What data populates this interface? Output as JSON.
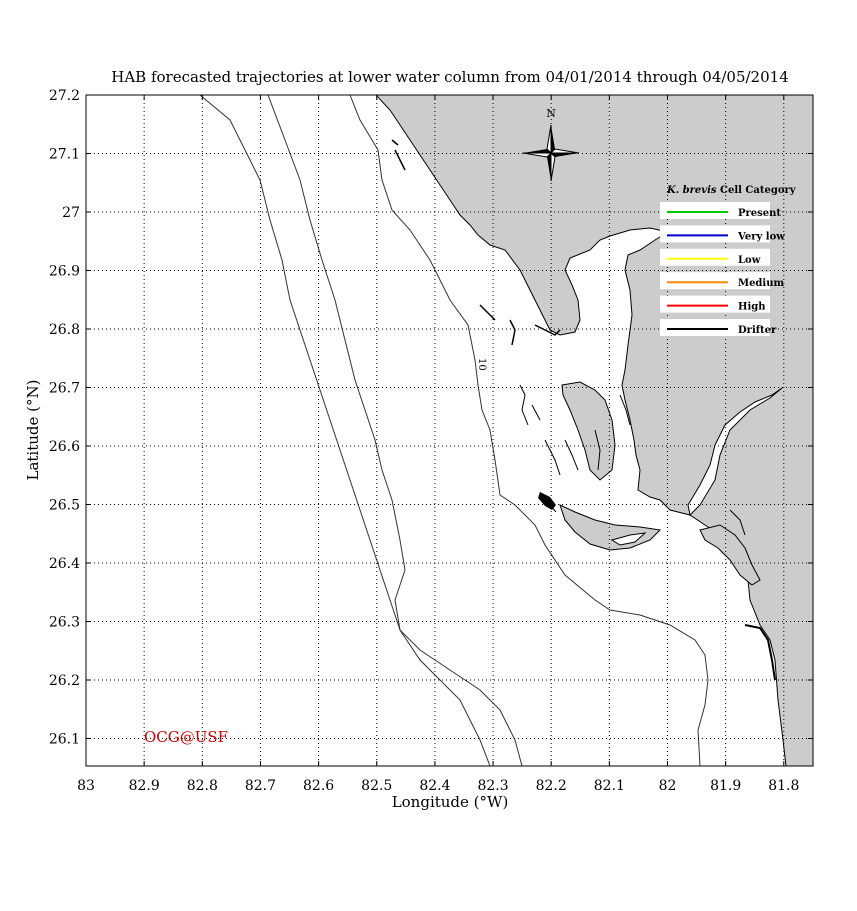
{
  "title": "HAB forecasted trajectories at lower water column from 04/01/2014 through 04/05/2014",
  "xlabel": "Longitude (°W)",
  "ylabel": "Latitude (°N)",
  "x_ticks": [
    "83",
    "82.9",
    "82.8",
    "82.7",
    "82.6",
    "82.5",
    "82.4",
    "82.3",
    "82.2",
    "82.1",
    "82",
    "81.9",
    "81.8"
  ],
  "y_ticks": [
    "27.2",
    "27.1",
    "27",
    "26.9",
    "26.8",
    "26.7",
    "26.6",
    "26.5",
    "26.4",
    "26.3",
    "26.2",
    "26.1"
  ],
  "contour_label": "10",
  "compass_label": "N",
  "credit": "OCG@USF",
  "legend": {
    "title_italic": "K. brevis",
    "title_rest": " Cell Category",
    "items": [
      {
        "label": "Present",
        "color": "#00cc00"
      },
      {
        "label": "Very low",
        "color": "#0000cc"
      },
      {
        "label": "Low",
        "color": "#ffff00"
      },
      {
        "label": "Medium",
        "color": "#ff8800"
      },
      {
        "label": "High",
        "color": "#ff0000"
      },
      {
        "label": "Drifter",
        "color": "#000000"
      }
    ]
  },
  "colors": {
    "land": "#cccccc",
    "credit": "#cc0000",
    "grid": "#000000"
  }
}
